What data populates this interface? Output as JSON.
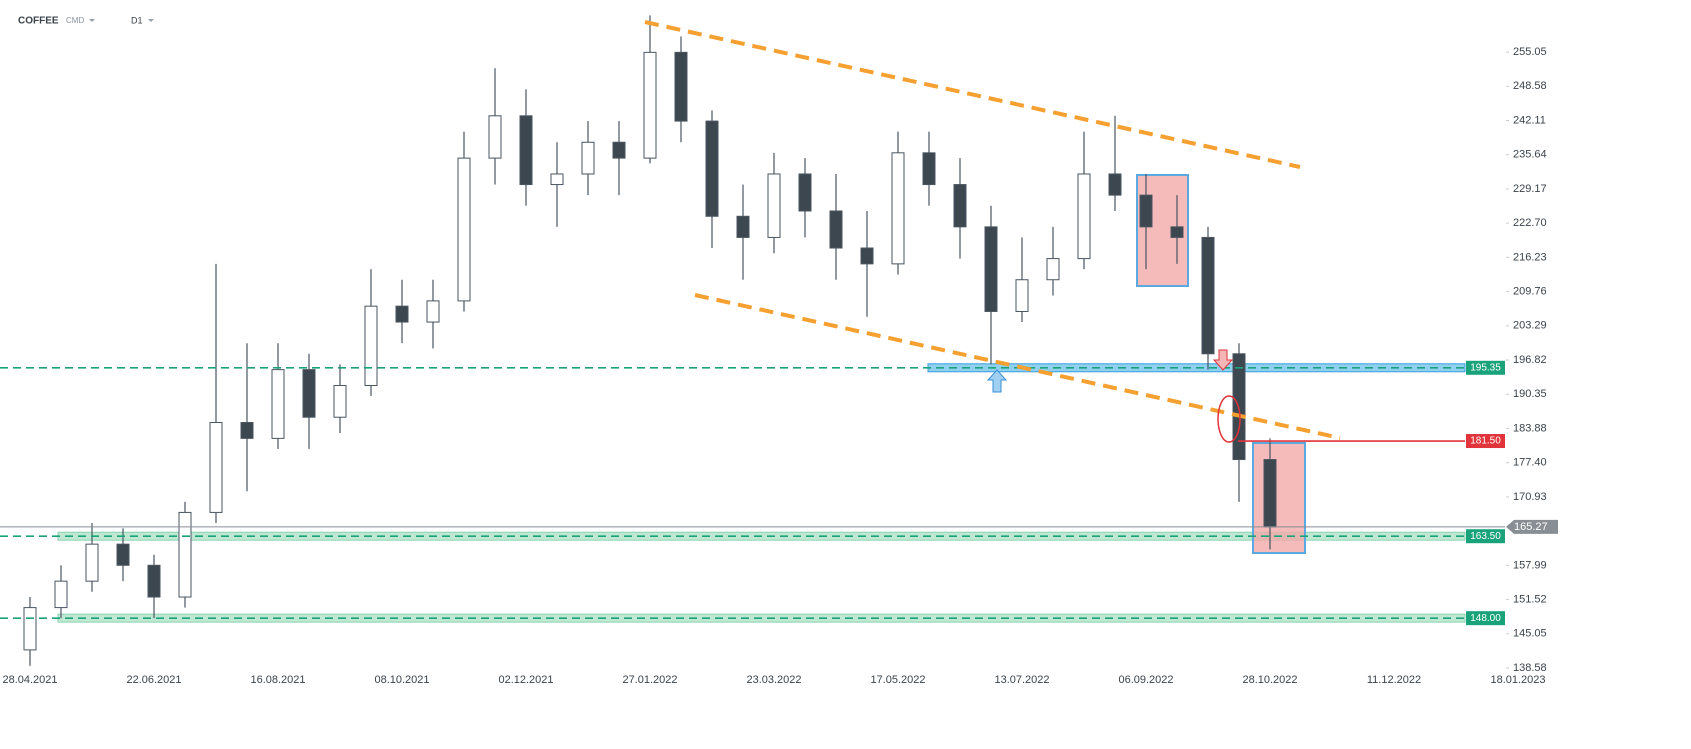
{
  "header": {
    "symbol": "COFFEE",
    "source": "CMD",
    "interval": "D1"
  },
  "chart_data": {
    "type": "candlestick",
    "categories": [
      "28.04.2021",
      null,
      null,
      null,
      "22.06.2021",
      null,
      null,
      null,
      "16.08.2021",
      null,
      null,
      null,
      "08.10.2021",
      null,
      null,
      null,
      "02.12.2021",
      null,
      null,
      null,
      "27.01.2022",
      null,
      null,
      null,
      "23.03.2022",
      null,
      null,
      null,
      "17.05.2022",
      null,
      null,
      null,
      "13.07.2022",
      null,
      null,
      null,
      "06.09.2022",
      null,
      null,
      null,
      "28.10.2022",
      null,
      null,
      null,
      "11.12.2022",
      null,
      null,
      null,
      "18.01.2023"
    ],
    "open": [
      142,
      150,
      155,
      162,
      158,
      152,
      168,
      185,
      182,
      195,
      186,
      192,
      207,
      204,
      208,
      235,
      243,
      230,
      232,
      238,
      235,
      255,
      242,
      224,
      220,
      232,
      225,
      218,
      215,
      236,
      230,
      222,
      206,
      212,
      216,
      232,
      228,
      222,
      220,
      198,
      178,
      null,
      null,
      null,
      null,
      null,
      null,
      null,
      null
    ],
    "high": [
      152,
      158,
      166,
      165,
      160,
      170,
      215,
      200,
      200,
      198,
      196,
      214,
      212,
      212,
      240,
      252,
      248,
      238,
      242,
      242,
      262,
      258,
      244,
      230,
      236,
      235,
      232,
      225,
      240,
      240,
      235,
      226,
      220,
      222,
      240,
      243,
      232,
      228,
      222,
      200,
      182,
      null,
      null,
      null,
      null,
      null,
      null,
      null,
      null
    ],
    "low": [
      139,
      148,
      153,
      155,
      148,
      150,
      166,
      172,
      180,
      180,
      183,
      190,
      200,
      199,
      206,
      230,
      226,
      222,
      228,
      228,
      234,
      238,
      218,
      212,
      217,
      220,
      212,
      205,
      213,
      226,
      216,
      196,
      204,
      209,
      214,
      225,
      214,
      215,
      195,
      170,
      161,
      null,
      null,
      null,
      null,
      null,
      null,
      null,
      null
    ],
    "close": [
      150,
      155,
      162,
      158,
      152,
      168,
      185,
      182,
      195,
      186,
      192,
      207,
      204,
      208,
      235,
      243,
      230,
      232,
      238,
      235,
      255,
      242,
      224,
      220,
      232,
      225,
      218,
      215,
      236,
      230,
      222,
      206,
      212,
      216,
      232,
      228,
      222,
      220,
      198,
      178,
      165.27,
      null,
      null,
      null,
      null,
      null,
      null,
      null,
      null
    ],
    "up_color": "#ffffff",
    "down_color": "#3d4750",
    "wick_color": "#4a5560",
    "ylim": [
      138.2,
      264.9
    ],
    "yticks": [
      255.05,
      248.58,
      242.11,
      235.64,
      229.17,
      {
        "value": 222.7,
        "label": "222.70"
      },
      216.23,
      209.76,
      203.29,
      196.82,
      190.35,
      183.88,
      {
        "value": 177.4,
        "label": "177.40"
      },
      170.93,
      157.99,
      151.52,
      145.05,
      138.58
    ],
    "grid": false,
    "levels": [
      {
        "value": 195.35,
        "color": "#1aa37a",
        "style": "dashed",
        "zone": "#8fd0ef"
      },
      {
        "value": 181.5,
        "label": "181.50",
        "color": "#e0333a",
        "style": "solid"
      },
      {
        "value": 163.5,
        "label": "163.50",
        "color": "#1aa37a",
        "style": "dashed",
        "zone": "#bfe8d3"
      },
      {
        "value": 148.0,
        "label": "148.00",
        "color": "#1aa37a",
        "style": "dashed",
        "zone": "#bfe8d3"
      },
      {
        "value": 165.27,
        "color": "#888e94",
        "style": "current"
      }
    ]
  }
}
